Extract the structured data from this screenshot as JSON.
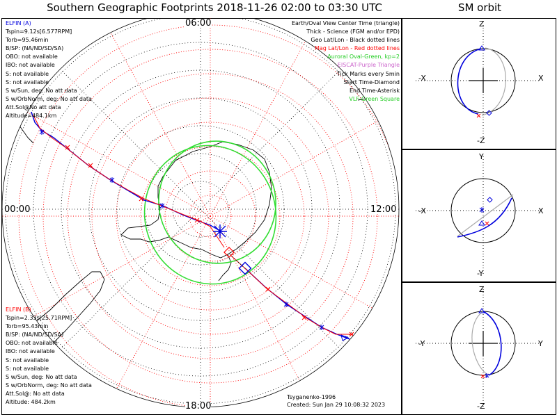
{
  "title": "Southern Geographic Footprints 2018-11-26 02:00 to 03:30 UTC",
  "orbit_title": "SM orbit",
  "clock_labels": {
    "top": "06:00",
    "left": "00:00",
    "right": "12:00",
    "bottom": "18:00"
  },
  "elfin_a": {
    "name": "ELFIN (A)",
    "lines": [
      "Tspin=9.12s[6.577RPM]",
      "Torb=95.46min",
      "B/SP: (NA/ND/SD/SA)",
      "OBO: not available",
      "IBO: not available",
      "S: not available",
      "S: not available",
      "S w/Sun, deg: No att data",
      "S w/OrbNorm, deg: No att data",
      "Att.Sol@No att data",
      "Altitude=484.1km"
    ],
    "color": "#0000dd"
  },
  "elfin_b": {
    "name": "ELFIN (B)",
    "lines": [
      "Tspin=2.33s[25.71RPM]",
      "Torb=95.43min",
      "B/SP: (NA/ND/SD/SA)",
      "OBO: not available",
      "IBO: not available",
      "S: not available",
      "S: not available",
      "S w/Sun, deg: No att data",
      "S w/OrbNorm, deg: No att data",
      "Att.Sol@: No att data",
      "Altitude: 484.2km"
    ],
    "color": "#ff0000"
  },
  "legend": {
    "center": "Earth/Oval View Center Time (triangle)",
    "thick": "Thick - Science (FGM and/or EPD)",
    "geo": "Geo Lat/Lon - Black dotted lines",
    "mag": "Mag Lat/Lon - Red dotted lines",
    "oval": "Auroral Oval-Green, kp=2",
    "eiscat": "EISCAT-Purple Triangle",
    "ticks": "Tick Marks every 5min",
    "start": "Start Time-Diamond",
    "end": "End Time-Asterisk",
    "vlf": "VLF-Green Square"
  },
  "credits": {
    "model": "Tsyganenko-1996",
    "created": "Created: Sun Jan 29 10:08:32 2023"
  },
  "orbit_panels": [
    {
      "top": "Z",
      "bottom": "-Z",
      "left": "-X",
      "right": "X"
    },
    {
      "top": "Y",
      "bottom": "-Y",
      "left": "-X",
      "right": "X"
    },
    {
      "top": "Z",
      "bottom": "-Z",
      "left": "-Y",
      "right": "Y"
    }
  ],
  "colors": {
    "elfin_a": "#0000dd",
    "elfin_b": "#ff0000",
    "oval": "#33dd33",
    "mag_grid": "#ff0000",
    "geo_grid": "#000000"
  }
}
